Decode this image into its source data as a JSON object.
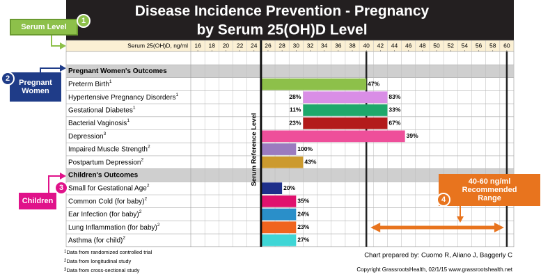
{
  "chart_data": {
    "type": "floating-bar",
    "title": "Disease Incidence Prevention - Pregnancy",
    "subtitle": "by Serum 25(OH)D Level",
    "x_label": "Serum 25(OH)D, ng/ml",
    "xlim": [
      15,
      61
    ],
    "xticks": [
      16,
      18,
      20,
      22,
      24,
      26,
      28,
      30,
      32,
      34,
      36,
      38,
      40,
      42,
      44,
      46,
      48,
      50,
      52,
      54,
      56,
      58,
      60
    ],
    "reference_line": {
      "value": 25,
      "label": "Serum Reference Level"
    },
    "recommended_range": {
      "values": [
        40,
        60
      ],
      "label": "40-60 ng/ml Recommended Range"
    },
    "sections": [
      {
        "title": "Pregnant Women's Outcomes",
        "outcomes": [
          {
            "name": "Preterm Birth",
            "note": "1",
            "start": 25,
            "end": 40,
            "end_label": "47%",
            "color": "#8dc04a"
          },
          {
            "name": "Hypertensive Pregnancy Disorders",
            "note": "1",
            "start": 31,
            "end": 43,
            "start_label": "28%",
            "end_label": "83%",
            "color": "#d98ee6"
          },
          {
            "name": "Gestational Diabetes",
            "note": "1",
            "start": 31,
            "end": 43,
            "start_label": "11%",
            "end_label": "33%",
            "color": "#1ea86b"
          },
          {
            "name": "Bacterial Vaginosis",
            "note": "1",
            "start": 31,
            "end": 43,
            "start_label": "23%",
            "end_label": "67%",
            "color": "#b31b1b"
          },
          {
            "name": "Depression",
            "note": "3",
            "start": 25,
            "end": 45.5,
            "end_label": "39%",
            "color": "#ee4f9a"
          },
          {
            "name": "Impaired Muscle Strength",
            "note": "2",
            "start": 25,
            "end": 30,
            "end_label": "100%",
            "color": "#9b7bbf"
          },
          {
            "name": "Postpartum Depression",
            "note": "2",
            "start": 25,
            "end": 31,
            "end_label": "43%",
            "color": "#cc9a2e"
          }
        ]
      },
      {
        "title": "Children's Outcomes",
        "outcomes": [
          {
            "name": "Small for Gestational Age",
            "note": "2",
            "start": 25,
            "end": 28,
            "end_label": "20%",
            "color": "#1e2f8a"
          },
          {
            "name": "Common Cold (for baby)",
            "note": "2",
            "start": 25,
            "end": 30,
            "end_label": "35%",
            "color": "#e0126e"
          },
          {
            "name": "Ear Infection (for baby)",
            "note": "2",
            "start": 25,
            "end": 30,
            "end_label": "24%",
            "color": "#2a8fc9"
          },
          {
            "name": "Lung Inflammation (for baby)",
            "note": "2",
            "start": 25,
            "end": 30,
            "end_label": "23%",
            "color": "#f0641e"
          },
          {
            "name": "Asthma (for child)",
            "note": "2",
            "start": 25,
            "end": 30,
            "end_label": "27%",
            "color": "#3fd6d6"
          }
        ]
      }
    ],
    "footnotes": [
      {
        "marker": "1",
        "text": "Data from randomized controlled trial"
      },
      {
        "marker": "2",
        "text": "Data from longitudinal study"
      },
      {
        "marker": "3",
        "text": "Data from cross-sectional study"
      }
    ],
    "credits": [
      "Chart prepared by: Cuomo R, Aliano J, Baggerly C",
      "Copyright GrassrootsHealth, 02/1/15 www.grassrootshealth.net"
    ]
  },
  "callouts": [
    {
      "number": "1",
      "label": "Serum Level"
    },
    {
      "number": "2",
      "label": "Pregnant Women"
    },
    {
      "number": "3",
      "label": "Children"
    },
    {
      "number": "4"
    }
  ]
}
